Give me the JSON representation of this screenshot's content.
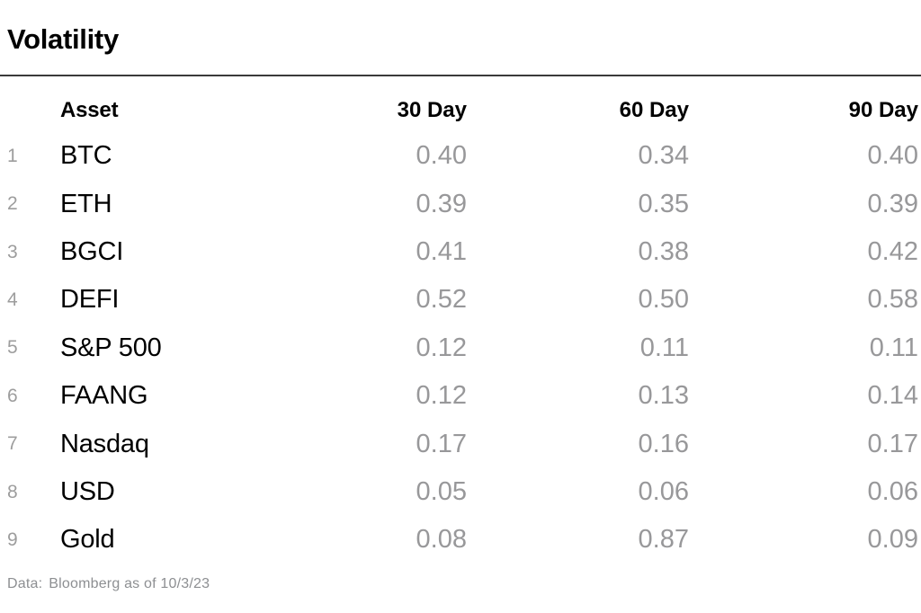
{
  "title": "Volatility",
  "table": {
    "headers": {
      "asset": "Asset",
      "d30": "30 Day",
      "d60": "60 Day",
      "d90": "90 Day"
    },
    "rows": [
      {
        "num": "1",
        "asset": "BTC",
        "d30": "0.40",
        "d60": "0.34",
        "d90": "0.40"
      },
      {
        "num": "2",
        "asset": "ETH",
        "d30": "0.39",
        "d60": "0.35",
        "d90": "0.39"
      },
      {
        "num": "3",
        "asset": "BGCI",
        "d30": "0.41",
        "d60": "0.38",
        "d90": "0.42"
      },
      {
        "num": "4",
        "asset": "DEFI",
        "d30": "0.52",
        "d60": "0.50",
        "d90": "0.58"
      },
      {
        "num": "5",
        "asset": "S&P 500",
        "d30": "0.12",
        "d60": "0.11",
        "d90": "0.11"
      },
      {
        "num": "6",
        "asset": "FAANG",
        "d30": "0.12",
        "d60": "0.13",
        "d90": "0.14"
      },
      {
        "num": "7",
        "asset": "Nasdaq",
        "d30": "0.17",
        "d60": "0.16",
        "d90": "0.17"
      },
      {
        "num": "8",
        "asset": "USD",
        "d30": "0.05",
        "d60": "0.06",
        "d90": "0.06"
      },
      {
        "num": "9",
        "asset": "Gold",
        "d30": "0.08",
        "d60": "0.87",
        "d90": "0.09"
      }
    ]
  },
  "footer": {
    "label": "Data:",
    "text": "Bloomberg as of 10/3/23"
  },
  "colors": {
    "text": "#000000",
    "muted": "#98989a",
    "rule": "#3a3a3a",
    "footer": "#8d8f92"
  },
  "chart_data": {
    "type": "table",
    "title": "Volatility",
    "columns": [
      "Asset",
      "30 Day",
      "60 Day",
      "90 Day"
    ],
    "rows": [
      [
        "BTC",
        0.4,
        0.34,
        0.4
      ],
      [
        "ETH",
        0.39,
        0.35,
        0.39
      ],
      [
        "BGCI",
        0.41,
        0.38,
        0.42
      ],
      [
        "DEFI",
        0.52,
        0.5,
        0.58
      ],
      [
        "S&P 500",
        0.12,
        0.11,
        0.11
      ],
      [
        "FAANG",
        0.12,
        0.13,
        0.14
      ],
      [
        "Nasdaq",
        0.17,
        0.16,
        0.17
      ],
      [
        "USD",
        0.05,
        0.06,
        0.06
      ],
      [
        "Gold",
        0.08,
        0.87,
        0.09
      ]
    ],
    "note": "Data: Bloomberg as of 10/3/23"
  }
}
